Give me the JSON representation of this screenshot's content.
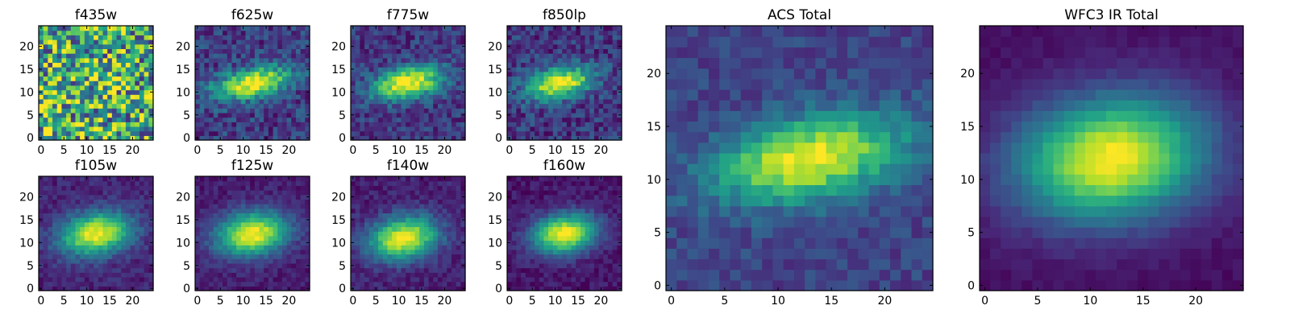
{
  "figure": {
    "background": "#ffffff",
    "colormap": "viridis",
    "colormap_stops": [
      "#440154",
      "#482878",
      "#3e4989",
      "#31688e",
      "#26828e",
      "#1f9e89",
      "#35b779",
      "#6ece58",
      "#b5de2b",
      "#fde725"
    ]
  },
  "chart_data": [
    {
      "type": "heatmap",
      "title": "f435w",
      "grid_size": [
        25,
        25
      ],
      "xlim": [
        0,
        24
      ],
      "ylim": [
        0,
        24
      ],
      "xticks": [
        0,
        5,
        10,
        15,
        20
      ],
      "yticks": [
        0,
        5,
        10,
        15,
        20
      ],
      "source_peak": null,
      "description": "noise only, no visible source"
    },
    {
      "type": "heatmap",
      "title": "f625w",
      "grid_size": [
        25,
        25
      ],
      "xlim": [
        0,
        24
      ],
      "ylim": [
        0,
        24
      ],
      "xticks": [
        0,
        5,
        10,
        15,
        20
      ],
      "yticks": [
        0,
        5,
        10,
        15,
        20
      ],
      "source_peak": [
        12,
        12
      ],
      "description": "elongated source tilted upward to the right"
    },
    {
      "type": "heatmap",
      "title": "f775w",
      "grid_size": [
        25,
        25
      ],
      "xlim": [
        0,
        24
      ],
      "ylim": [
        0,
        24
      ],
      "xticks": [
        0,
        5,
        10,
        15,
        20
      ],
      "yticks": [
        0,
        5,
        10,
        15,
        20
      ],
      "source_peak": [
        12,
        12
      ],
      "description": "elongated source"
    },
    {
      "type": "heatmap",
      "title": "f850lp",
      "grid_size": [
        25,
        25
      ],
      "xlim": [
        0,
        24
      ],
      "ylim": [
        0,
        24
      ],
      "xticks": [
        0,
        5,
        10,
        15,
        20
      ],
      "yticks": [
        0,
        5,
        10,
        15,
        20
      ],
      "source_peak": [
        11,
        12
      ],
      "description": "elongated source"
    },
    {
      "type": "heatmap",
      "title": "f105w",
      "grid_size": [
        25,
        25
      ],
      "xlim": [
        0,
        24
      ],
      "ylim": [
        0,
        24
      ],
      "xticks": [
        0,
        5,
        10,
        15,
        20
      ],
      "yticks": [
        0,
        5,
        10,
        15,
        20
      ],
      "source_peak": [
        12,
        12
      ],
      "description": "smooth elliptical source"
    },
    {
      "type": "heatmap",
      "title": "f125w",
      "grid_size": [
        25,
        25
      ],
      "xlim": [
        0,
        24
      ],
      "ylim": [
        0,
        24
      ],
      "xticks": [
        0,
        5,
        10,
        15,
        20
      ],
      "yticks": [
        0,
        5,
        10,
        15,
        20
      ],
      "source_peak": [
        12,
        12
      ],
      "description": "smooth elliptical source"
    },
    {
      "type": "heatmap",
      "title": "f140w",
      "grid_size": [
        25,
        25
      ],
      "xlim": [
        0,
        24
      ],
      "ylim": [
        0,
        24
      ],
      "xticks": [
        0,
        5,
        10,
        15,
        20
      ],
      "yticks": [
        0,
        5,
        10,
        15,
        20
      ],
      "source_peak": [
        11,
        11
      ],
      "description": "smooth elliptical source"
    },
    {
      "type": "heatmap",
      "title": "f160w",
      "grid_size": [
        25,
        25
      ],
      "xlim": [
        0,
        24
      ],
      "ylim": [
        0,
        24
      ],
      "xticks": [
        0,
        5,
        10,
        15,
        20
      ],
      "yticks": [
        0,
        5,
        10,
        15,
        20
      ],
      "source_peak": [
        12,
        12
      ],
      "description": "smooth elliptical source"
    },
    {
      "type": "heatmap",
      "title": "ACS Total",
      "grid_size": [
        25,
        25
      ],
      "xlim": [
        0,
        24
      ],
      "ylim": [
        0,
        24
      ],
      "xticks": [
        0,
        5,
        10,
        15,
        20
      ],
      "yticks": [
        0,
        5,
        10,
        15,
        20
      ],
      "source_peak": [
        13,
        12
      ],
      "description": "co-added ACS bands, elongated source"
    },
    {
      "type": "heatmap",
      "title": "WFC3 IR Total",
      "grid_size": [
        25,
        25
      ],
      "xlim": [
        0,
        24
      ],
      "ylim": [
        0,
        24
      ],
      "xticks": [
        0,
        5,
        10,
        15,
        20
      ],
      "yticks": [
        0,
        5,
        10,
        15,
        20
      ],
      "source_peak": [
        12,
        12
      ],
      "description": "co-added WFC3 IR bands, smooth elliptical source"
    }
  ]
}
